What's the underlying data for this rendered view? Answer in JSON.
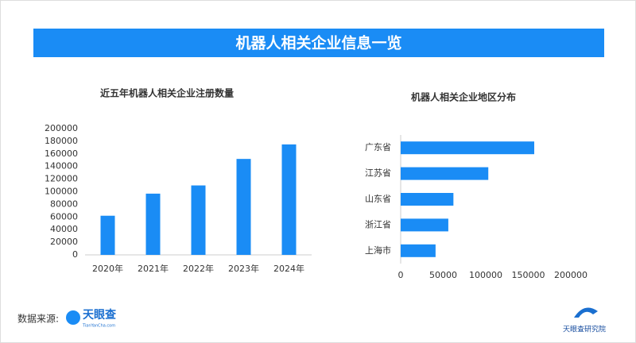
{
  "header": {
    "title": "机器人相关企业信息一览"
  },
  "chart_data": [
    {
      "type": "bar",
      "orientation": "vertical",
      "title": "近五年机器人相关企业注册数量",
      "categories": [
        "2020年",
        "2021年",
        "2022年",
        "2023年",
        "2024年"
      ],
      "values": [
        62000,
        97000,
        110000,
        152000,
        175000
      ],
      "color": "#1a8cf5",
      "ylim": [
        0,
        200000
      ],
      "yticks": [
        0,
        20000,
        40000,
        60000,
        80000,
        100000,
        120000,
        140000,
        160000,
        180000,
        200000
      ],
      "grid": false
    },
    {
      "type": "bar",
      "orientation": "horizontal",
      "title": "机器人相关企业地区分布",
      "categories": [
        "广东省",
        "江苏省",
        "山东省",
        "浙江省",
        "上海市"
      ],
      "values": [
        157000,
        103000,
        62000,
        56000,
        41000
      ],
      "color": "#1a8cf5",
      "xlim": [
        0,
        200000
      ],
      "xticks": [
        0,
        50000,
        100000,
        150000,
        200000
      ],
      "grid": false
    }
  ],
  "footer": {
    "source_label": "数据来源:",
    "logo": "天眼查",
    "logo_sub": "TianYanCha.com",
    "brand": "天眼查研究院"
  }
}
